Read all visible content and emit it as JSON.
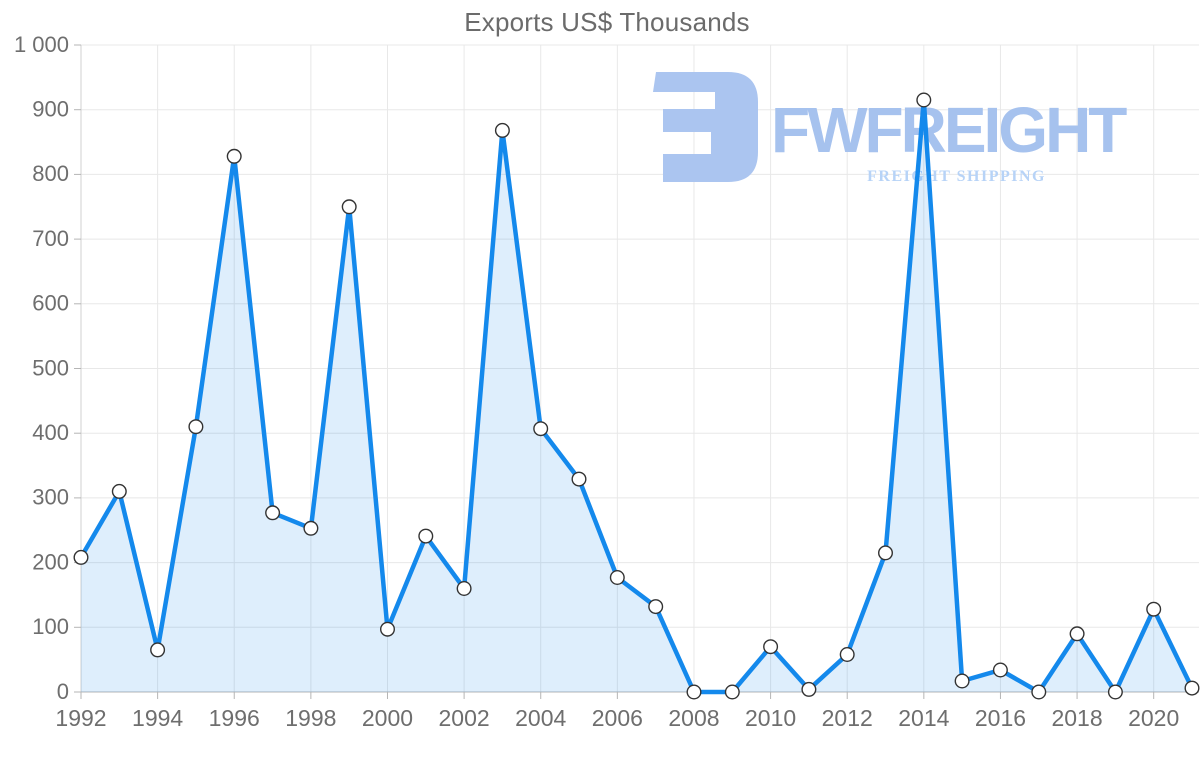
{
  "chart_data": {
    "type": "area",
    "title": "Exports US$ Thousands",
    "xlabel": "",
    "ylabel": "",
    "x": [
      1992,
      1993,
      1994,
      1995,
      1996,
      1997,
      1998,
      1999,
      2000,
      2001,
      2002,
      2003,
      2004,
      2005,
      2006,
      2007,
      2008,
      2009,
      2010,
      2011,
      2012,
      2013,
      2014,
      2015,
      2016,
      2017,
      2018,
      2019,
      2020,
      2021
    ],
    "series": [
      {
        "name": "Exports US$ Thousands",
        "values": [
          208,
          310,
          65,
          410,
          828,
          277,
          253,
          750,
          97,
          241,
          160,
          868,
          407,
          329,
          177,
          132,
          0,
          0,
          70,
          4,
          58,
          215,
          915,
          17,
          34,
          0,
          90,
          0,
          128,
          6
        ]
      }
    ],
    "ylim": [
      0,
      1000
    ],
    "y_ticks": [
      0,
      100,
      200,
      300,
      400,
      500,
      600,
      700,
      800,
      900,
      1000
    ],
    "y_tick_labels": [
      "0",
      "100",
      "200",
      "300",
      "400",
      "500",
      "600",
      "700",
      "800",
      "900",
      "1 000"
    ],
    "x_tick_years": [
      1992,
      1994,
      1996,
      1998,
      2000,
      2002,
      2004,
      2006,
      2008,
      2010,
      2012,
      2014,
      2016,
      2018,
      2020
    ],
    "grid": true,
    "legend": "none",
    "marker": "circle",
    "colors": {
      "line": "#1489ec",
      "fill": "rgba(20,137,236,0.14)",
      "marker_fill": "#ffffff",
      "marker_stroke": "#333333",
      "grid": "#e8e8e8",
      "axis": "#b5b5b5",
      "axis_left": "#d0d0d0",
      "label": "#6e6e6e",
      "title": "#6b6b6b"
    }
  },
  "watermark": {
    "brand": "FWFREIGHT",
    "tagline": "FREIGHT SHIPPING",
    "brand_color": "#a6c2ee",
    "tagline_color": "#b7d3f7",
    "logo_color": "#abc5f0"
  }
}
